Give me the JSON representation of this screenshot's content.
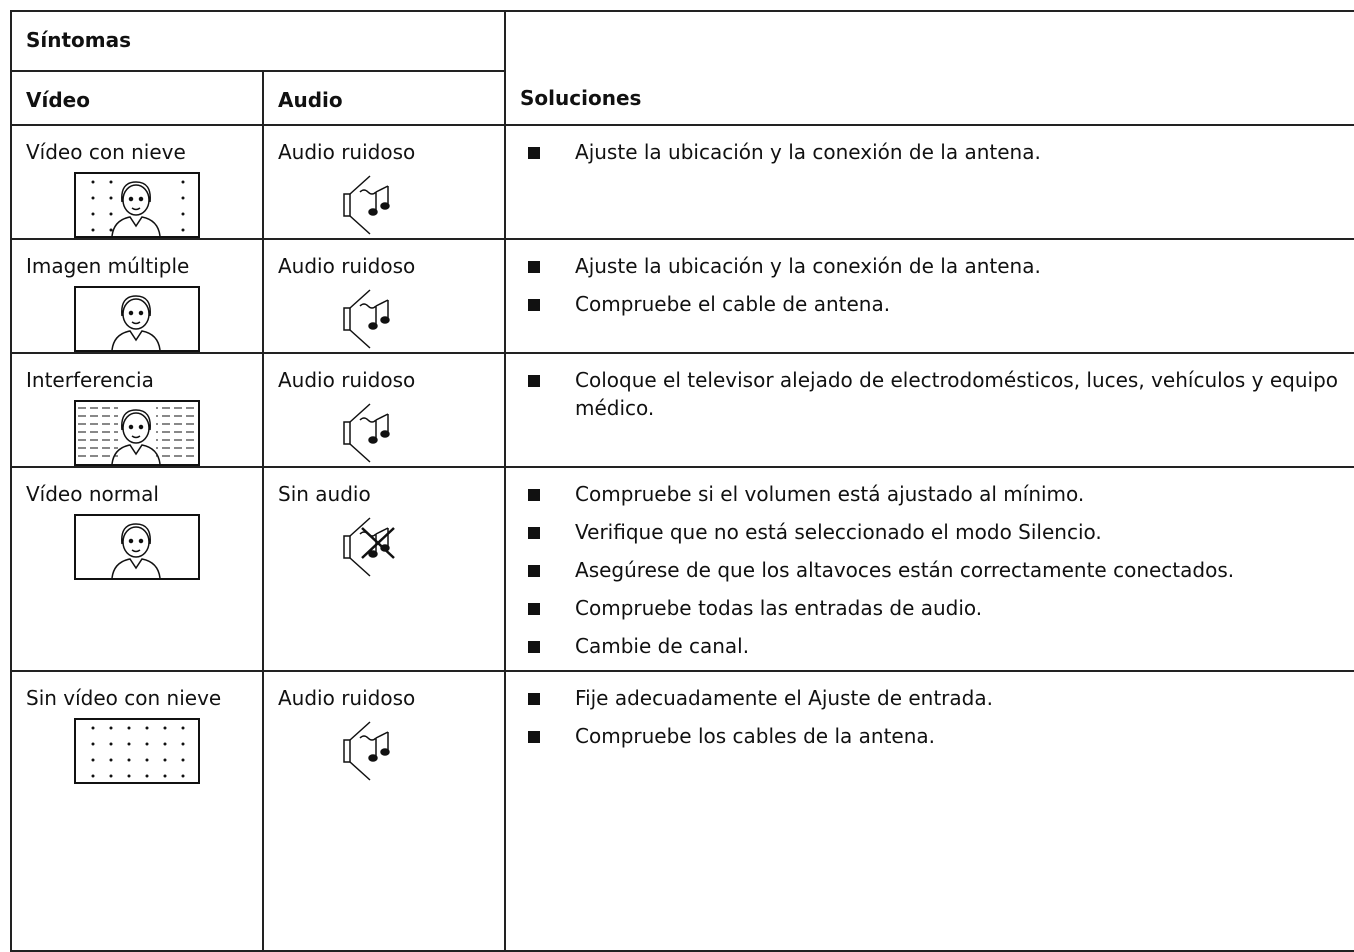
{
  "table": {
    "header": {
      "symptoms": "Síntomas",
      "video": "Vídeo",
      "audio": "Audio",
      "solutions": "Soluciones"
    },
    "rows": [
      {
        "video": "Vídeo con nieve",
        "audio": "Audio ruidoso",
        "solutions": [
          "Ajuste la ubicación y la conexión de la antena."
        ]
      },
      {
        "video": "Imagen múltiple",
        "audio": "Audio ruidoso",
        "solutions": [
          "Ajuste la ubicación y la conexión de la antena.",
          "Compruebe el cable de antena."
        ]
      },
      {
        "video": "Interferencia",
        "audio": "Audio ruidoso",
        "solutions": [
          "Coloque el televisor alejado de electrodomésticos, luces, vehículos y equipo médico."
        ]
      },
      {
        "video": "Vídeo normal",
        "audio": "Sin audio",
        "solutions": [
          "Compruebe si el volumen está ajustado al mínimo.",
          "Verifique que no está seleccionado el modo Silencio.",
          "Asegúrese de que los altavoces están correctamente conectados.",
          "Compruebe todas las entradas de audio.",
          "Cambie de canal."
        ]
      },
      {
        "video": "Sin vídeo con nieve",
        "audio": "Audio ruidoso",
        "solutions": [
          "Fije adecuadamente el Ajuste de entrada.",
          "Compruebe los cables de la antena."
        ]
      }
    ]
  }
}
